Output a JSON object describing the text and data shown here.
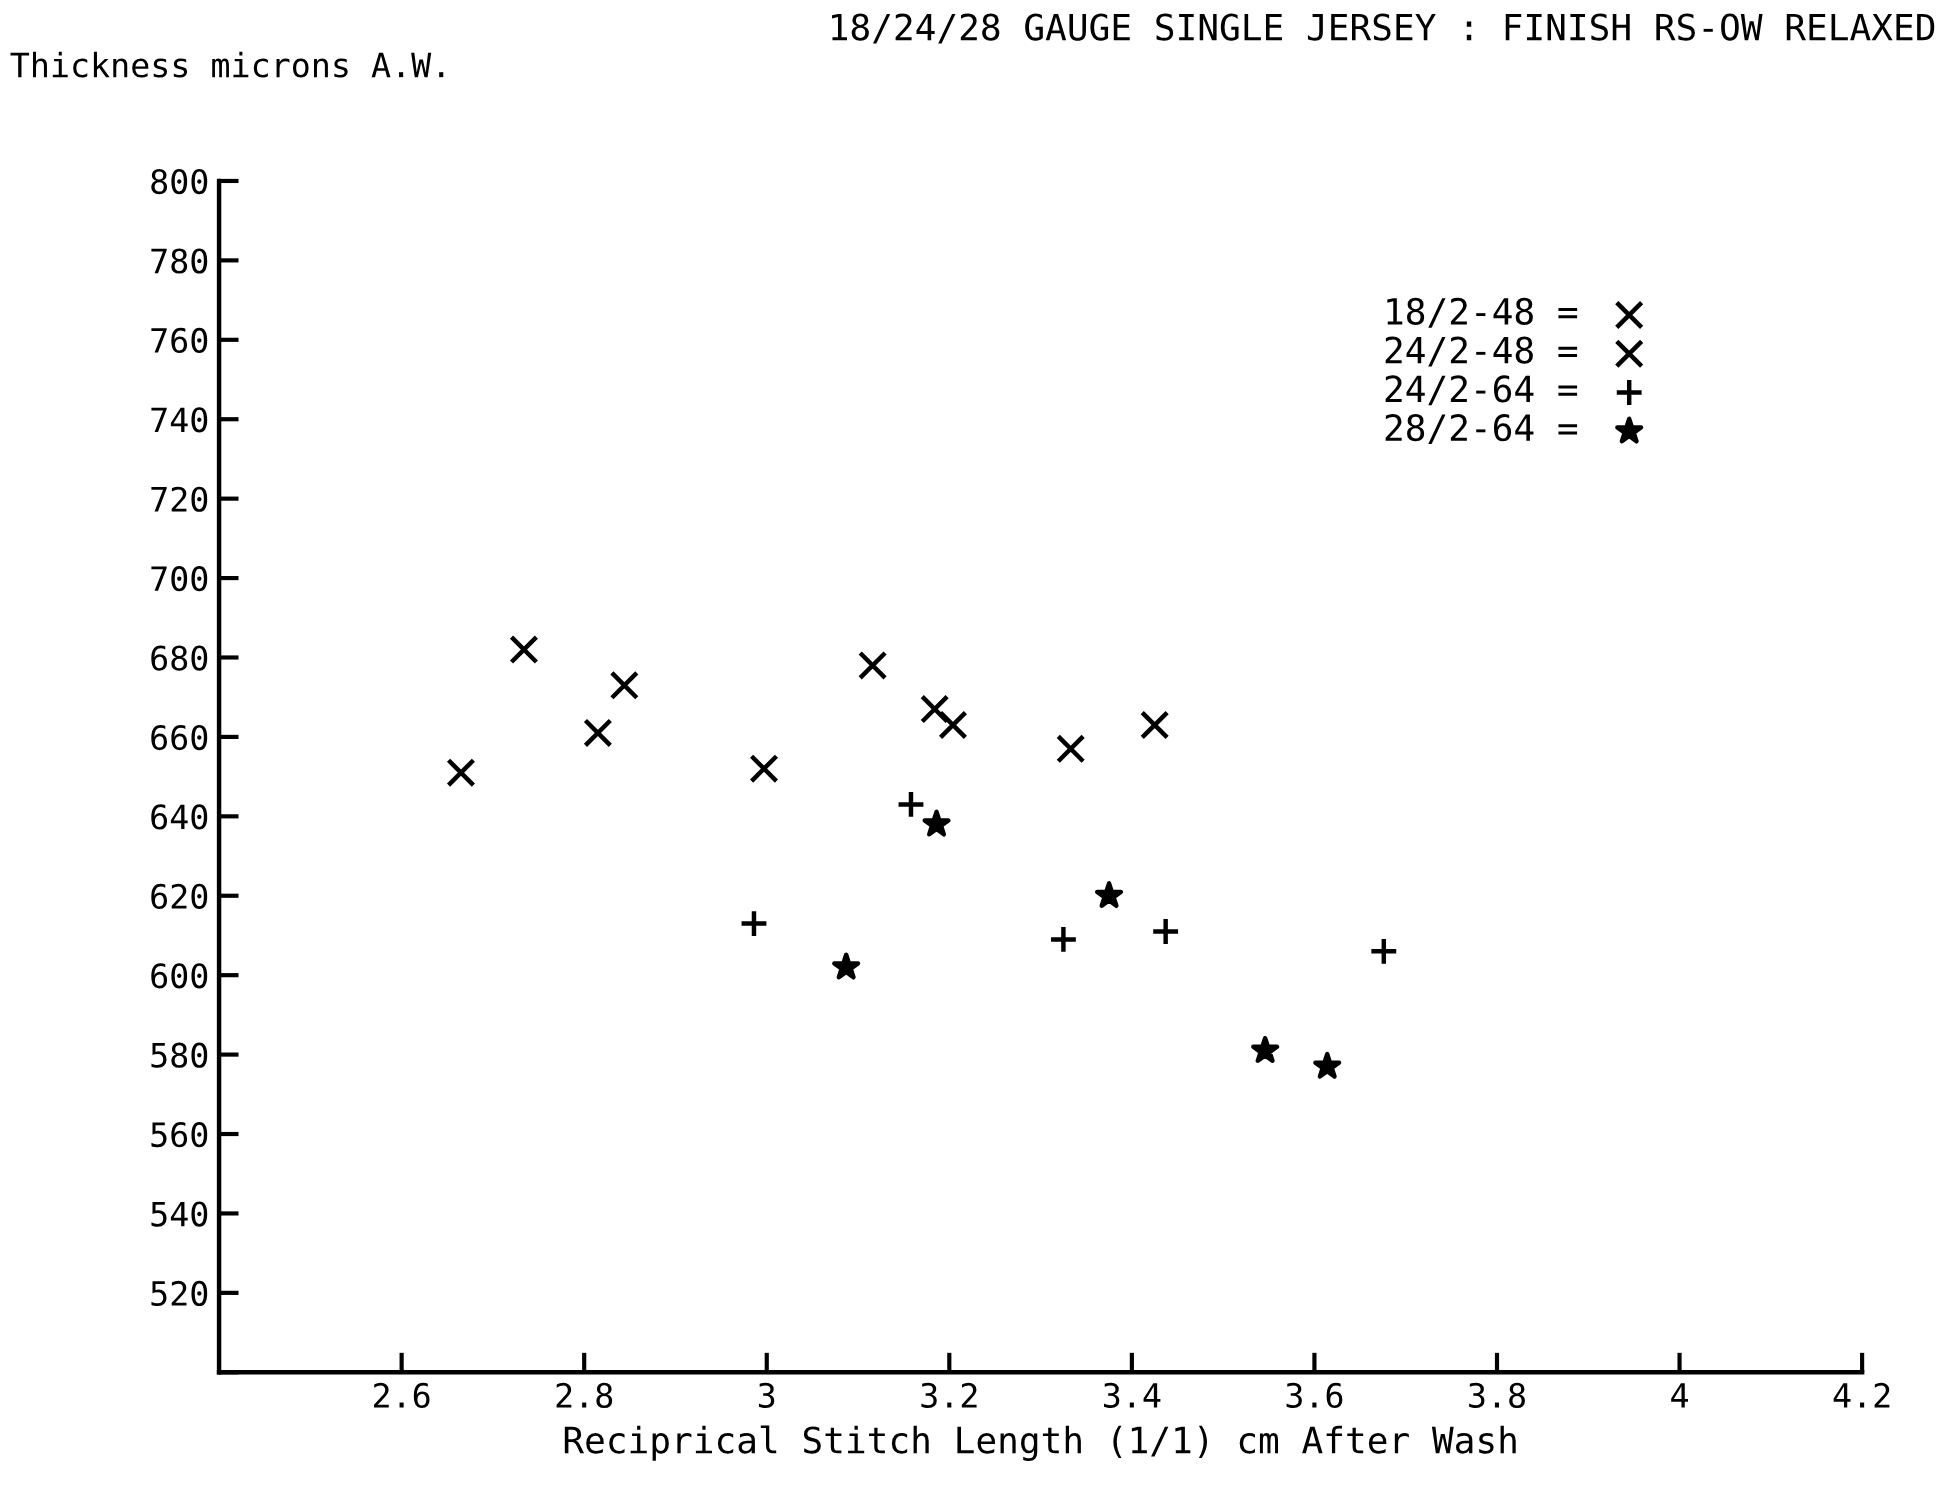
{
  "chart_data": {
    "type": "scatter",
    "title": "18/24/28 GAUGE SINGLE JERSEY : FINISH RS-OW RELAXED",
    "ylabel": "Thickness microns A.W.",
    "xlabel": "Reciprical Stitch Length (1/1) cm After Wash",
    "xlim": [
      2.4,
      4.2
    ],
    "xticks": [
      2.6,
      2.8,
      3,
      3.2,
      3.4,
      3.6,
      3.8,
      4,
      4.2
    ],
    "ylim": [
      500,
      800
    ],
    "yticks": [
      {
        "value": 500,
        "label": null
      },
      520,
      540,
      560,
      580,
      600,
      620,
      640,
      660,
      680,
      700,
      720,
      740,
      760,
      780,
      800
    ],
    "grid": false,
    "legend": "top right",
    "series": [
      {
        "name": "18/2-48 =",
        "color": "#000000",
        "marker": "cross",
        "x": [
          2.665,
          2.815,
          3.116,
          3.204,
          3.425
        ],
        "values": [
          651,
          661,
          678,
          663,
          663
        ]
      },
      {
        "name": "24/2-48 =",
        "color": "#000000",
        "marker": "cross",
        "x": [
          2.734,
          2.844,
          2.997,
          3.184,
          3.333
        ],
        "values": [
          682,
          673,
          652,
          667,
          657
        ]
      },
      {
        "name": "24/2-64 =",
        "color": "#000000",
        "marker": "plus",
        "x": [
          2.986,
          3.158,
          3.325,
          3.437,
          3.676
        ],
        "values": [
          613,
          643,
          609,
          611,
          606
        ]
      },
      {
        "name": "28/2-64 =",
        "color": "#000000",
        "marker": "star",
        "x": [
          3.087,
          3.186,
          3.375,
          3.546,
          3.614
        ],
        "values": [
          602,
          638,
          620,
          581,
          577
        ]
      }
    ]
  }
}
